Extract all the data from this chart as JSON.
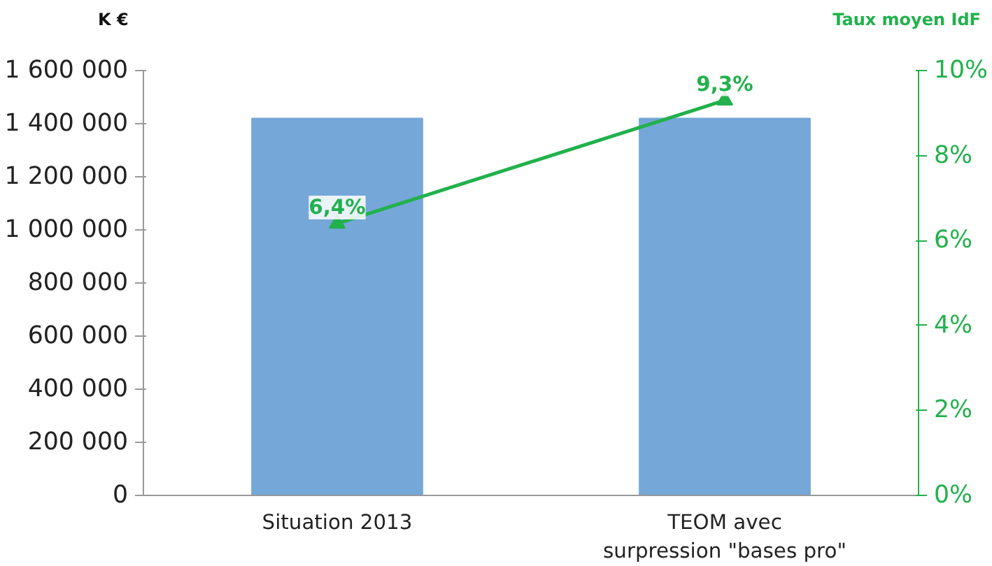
{
  "chart_data": {
    "type": "bar",
    "ylabel": "K €",
    "y2label": "Taux moyen IdF",
    "categories": [
      "Situation 2013",
      "TEOM avec\nsurpression \"bases pro\""
    ],
    "series": [
      {
        "color": "#75a7d9",
        "values": [
          1420000,
          1420000
        ]
      },
      {
        "type": "line",
        "axis": "y2",
        "color": "#22b14c",
        "marker": "triangle",
        "values": [
          6.4,
          9.3
        ],
        "value_labels": [
          "6,4%",
          "9,3%"
        ]
      }
    ],
    "ylim": [
      0,
      1600000
    ],
    "yticks": [
      0,
      {
        "value": 200000,
        "label": "200 000"
      },
      {
        "value": 400000,
        "label": "400 000"
      },
      {
        "value": 600000,
        "label": "600 000"
      },
      {
        "value": 800000,
        "label": "800 000"
      },
      {
        "value": 1000000,
        "label": "1 000 000"
      },
      {
        "value": 1200000,
        "label": "1 200 000"
      },
      {
        "value": 1400000,
        "label": "1 400 000"
      },
      {
        "value": 1600000,
        "label": "1 600 000"
      }
    ],
    "y2lim": [
      0,
      10
    ],
    "y2ticks": [
      {
        "value": 0,
        "label": "0%"
      },
      {
        "value": 2,
        "label": "2%"
      },
      {
        "value": 4,
        "label": "4%"
      },
      {
        "value": 6,
        "label": "6%"
      },
      {
        "value": 8,
        "label": "8%"
      },
      {
        "value": 10,
        "label": "10%"
      }
    ],
    "grid": false
  }
}
